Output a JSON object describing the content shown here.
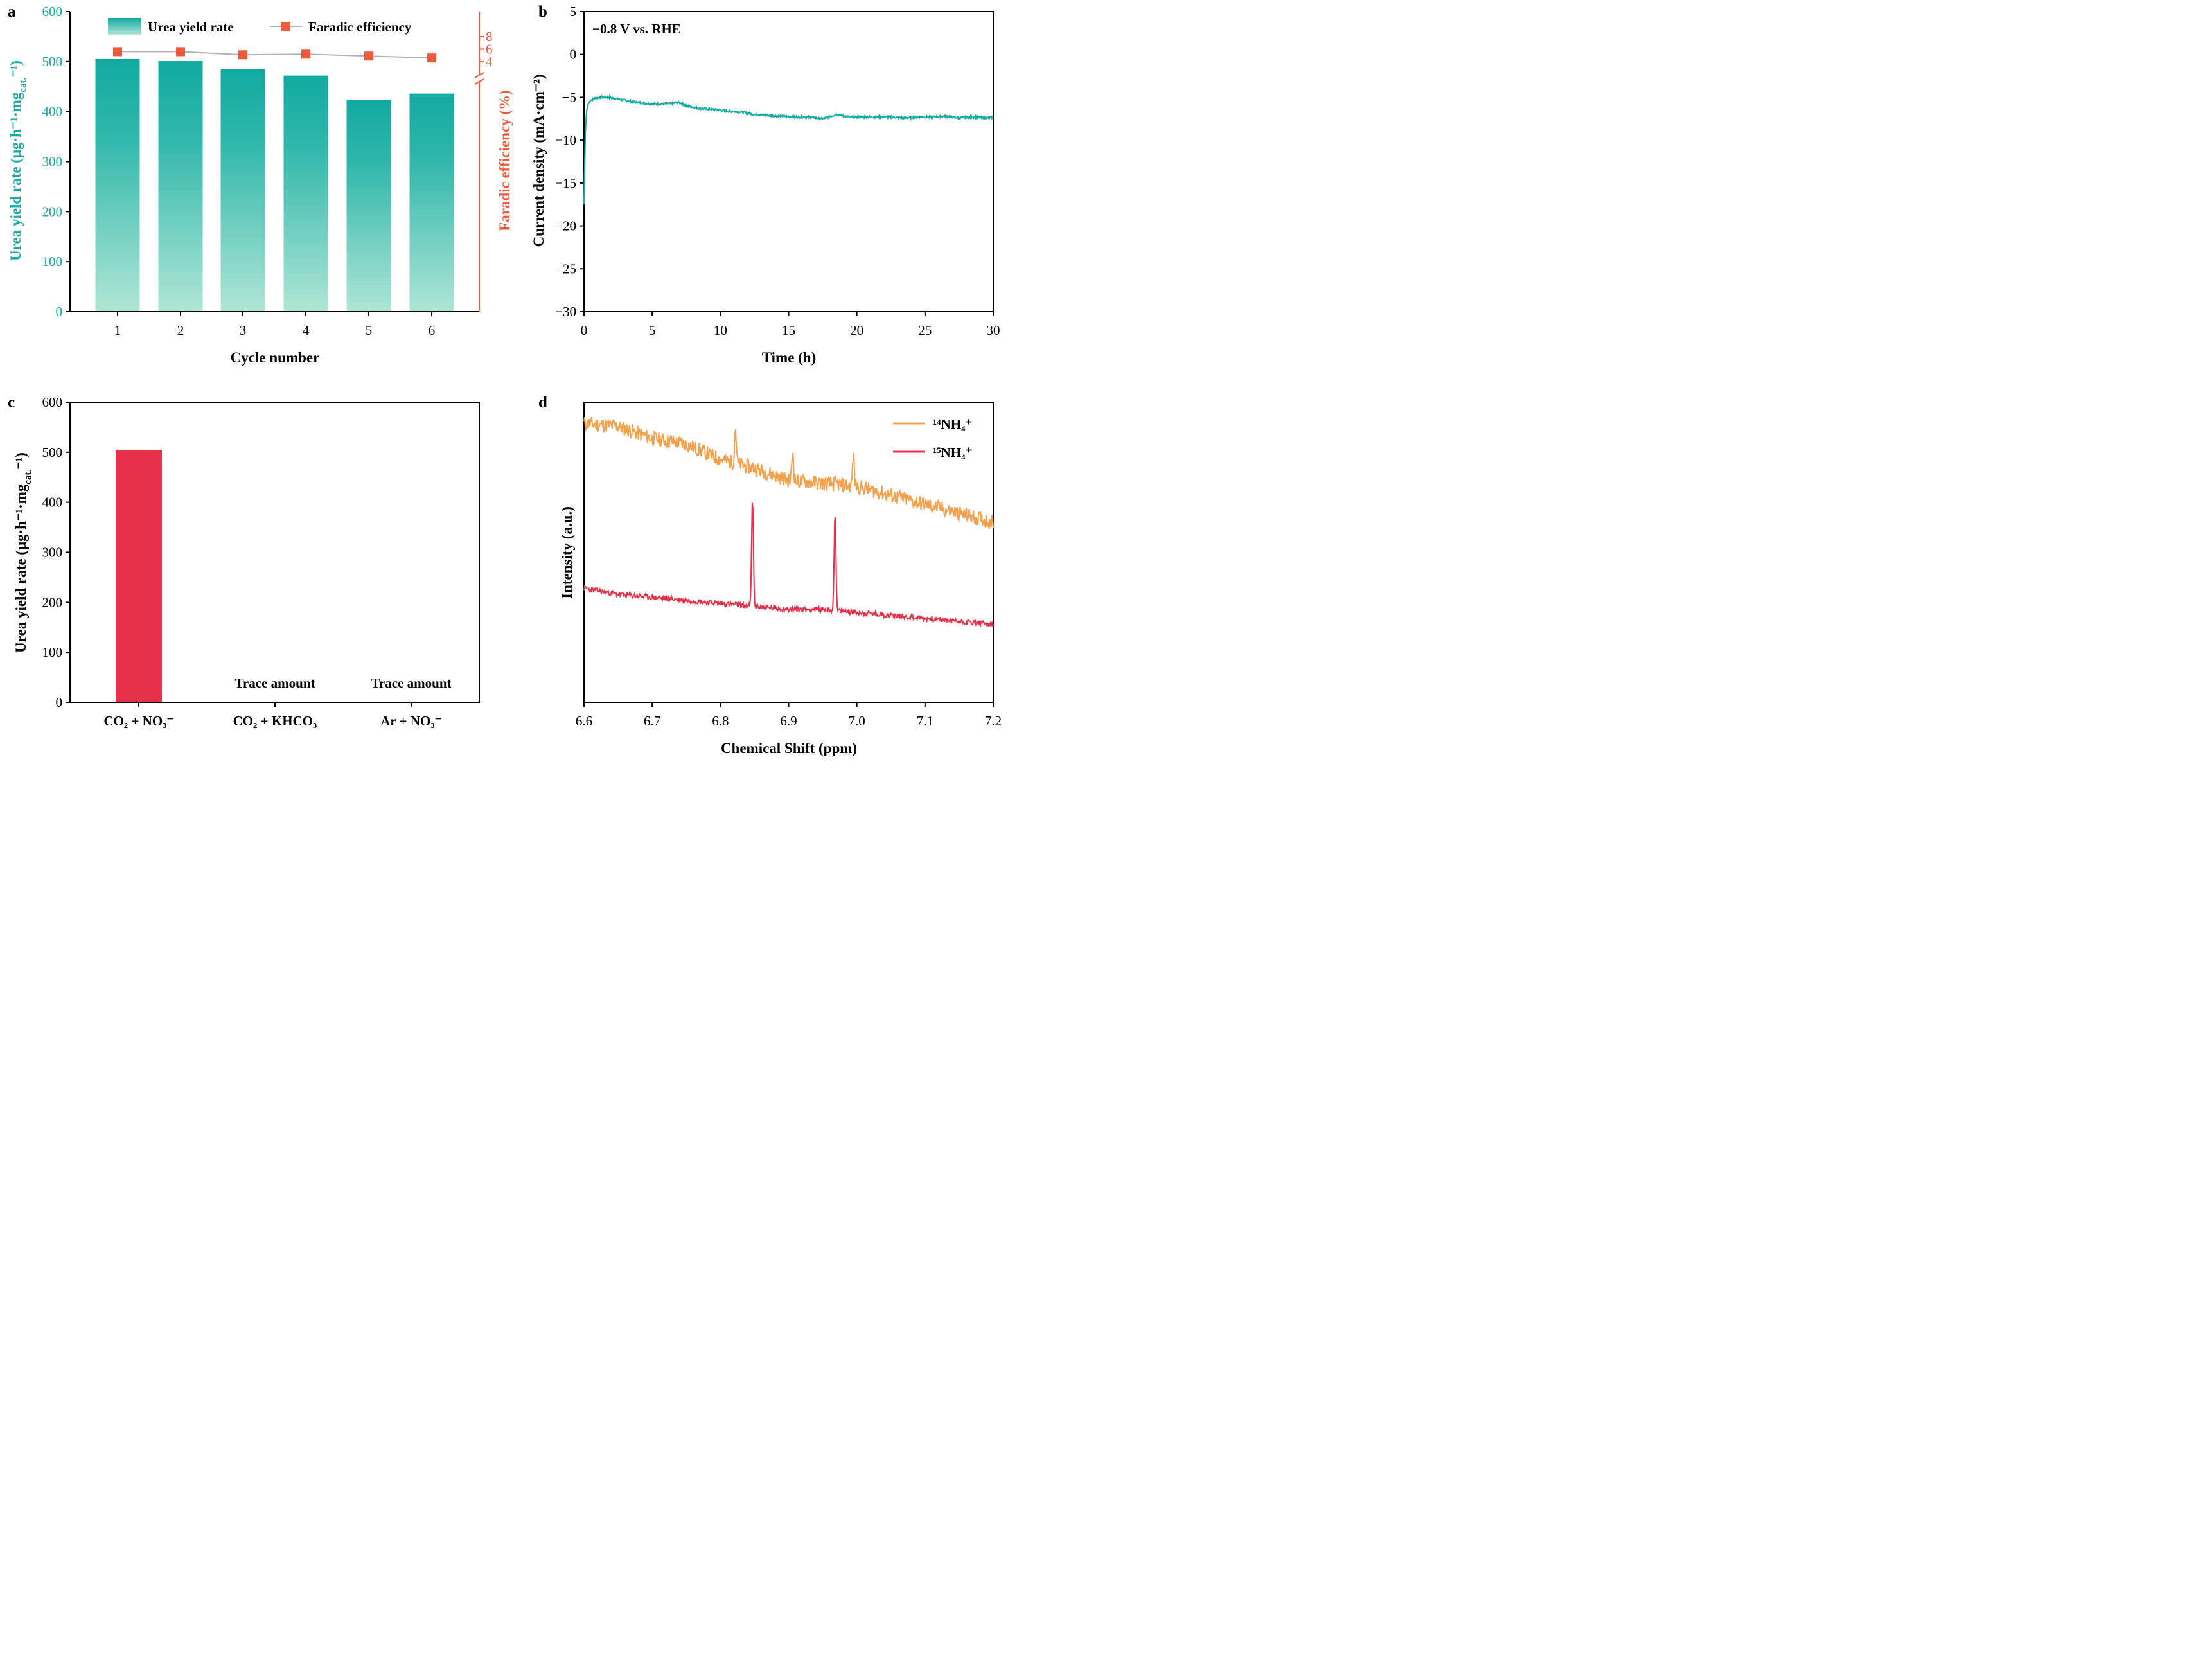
{
  "colors": {
    "teal": "#17ada2",
    "teal_light": "#a9e3d4",
    "orange_red": "#f05a3c",
    "red": "#e8304a",
    "orange": "#f5a04a",
    "gray_line": "#b0b0b0"
  },
  "chart_data": [
    {
      "panel": "a",
      "type": "bar",
      "xlabel": "Cycle number",
      "ylabel": "Urea yield rate (μg·h⁻¹·mg",
      "ylabel_sub": "cat.",
      "ylabel_end": "⁻¹)",
      "y2label": "Faradic efficiency (%)",
      "categories": [
        "1",
        "2",
        "3",
        "4",
        "5",
        "6"
      ],
      "ylim": [
        0,
        600
      ],
      "yticks": [
        "0",
        "100",
        "200",
        "300",
        "400",
        "500",
        "600"
      ],
      "y2ticks": [
        "4",
        "6",
        "8"
      ],
      "y2_break": "axis break below 4",
      "series": [
        {
          "name": "Urea yield rate",
          "type": "bar",
          "values": [
            505,
            501,
            485,
            472,
            424,
            436
          ]
        },
        {
          "name": "Faradic efficiency",
          "type": "line",
          "values": [
            5.6,
            5.6,
            5.1,
            5.2,
            4.9,
            4.6
          ]
        }
      ],
      "legend": [
        "Urea yield rate",
        "Faradic efficiency"
      ]
    },
    {
      "panel": "b",
      "type": "line",
      "xlabel": "Time (h)",
      "ylabel": "Current density (mA·cm⁻²)",
      "xlim": [
        0,
        30
      ],
      "ylim": [
        -30,
        5
      ],
      "xticks": [
        "0",
        "5",
        "10",
        "15",
        "20",
        "25",
        "30"
      ],
      "yticks": [
        "5",
        "0",
        "−5",
        "−10",
        "−15",
        "−20",
        "−25",
        "−30"
      ],
      "annotation": "−0.8 V vs. RHE",
      "series": [
        {
          "name": "current",
          "x": [
            0,
            0.05,
            0.1,
            0.2,
            0.3,
            0.5,
            0.8,
            1.2,
            1.8,
            2.5,
            3.5,
            4.5,
            5.5,
            6.5,
            7.0,
            7.5,
            8.5,
            9.5,
            10.5,
            11.5,
            12.5,
            13.5,
            14.5,
            15.5,
            16.5,
            17.5,
            18.5,
            19.5,
            20.5,
            21.5,
            22.5,
            23.5,
            24.5,
            25.5,
            26.5,
            27.5,
            28.5,
            29.5,
            30
          ],
          "y": [
            -17.5,
            -13,
            -9,
            -6.5,
            -5.8,
            -5.3,
            -5.1,
            -5.0,
            -5.0,
            -5.2,
            -5.5,
            -5.7,
            -5.8,
            -5.7,
            -5.6,
            -6.0,
            -6.3,
            -6.4,
            -6.6,
            -6.7,
            -7.0,
            -7.1,
            -7.2,
            -7.3,
            -7.3,
            -7.5,
            -7.0,
            -7.3,
            -7.3,
            -7.3,
            -7.3,
            -7.4,
            -7.3,
            -7.3,
            -7.2,
            -7.4,
            -7.3,
            -7.4,
            -7.3
          ]
        }
      ]
    },
    {
      "panel": "c",
      "type": "bar",
      "ylabel": "Urea yield rate (μg·h⁻¹·mg",
      "ylabel_sub": "cat.",
      "ylabel_end": "⁻¹)",
      "categories": [
        "CO₂ + NO₃⁻",
        "CO₂ + KHCO₃",
        "Ar + NO₃⁻"
      ],
      "values": [
        505,
        0,
        0
      ],
      "ylim": [
        0,
        600
      ],
      "yticks": [
        "0",
        "100",
        "200",
        "300",
        "400",
        "500",
        "600"
      ],
      "annotations": [
        "Trace amount",
        "Trace amount"
      ]
    },
    {
      "panel": "d",
      "type": "line",
      "xlabel": "Chemical Shift (ppm)",
      "ylabel": "Intensity (a.u.)",
      "xlim": [
        6.6,
        7.2
      ],
      "xticks": [
        "6.6",
        "6.7",
        "6.8",
        "6.9",
        "7.0",
        "7.1",
        "7.2"
      ],
      "legend": [
        "¹⁴NH₄⁺",
        "¹⁵NH₄⁺"
      ],
      "series": [
        {
          "name": "¹⁴NH₄⁺",
          "x": [
            6.6,
            6.65,
            6.7,
            6.75,
            6.8,
            6.85,
            6.9,
            6.95,
            7.0,
            7.05,
            7.1,
            7.15,
            7.2
          ],
          "y": [
            0.93,
            0.92,
            0.88,
            0.86,
            0.81,
            0.78,
            0.74,
            0.73,
            0.72,
            0.69,
            0.66,
            0.63,
            0.6
          ],
          "peaks": [
            [
              6.822,
              0.12
            ],
            [
              6.906,
              0.1
            ],
            [
              6.995,
              0.1
            ]
          ]
        },
        {
          "name": "¹⁵NH₄⁺",
          "x": [
            6.6,
            6.65,
            6.7,
            6.75,
            6.8,
            6.85,
            6.9,
            6.95,
            7.0,
            7.05,
            7.1,
            7.15,
            7.2
          ],
          "y": [
            0.38,
            0.36,
            0.35,
            0.34,
            0.33,
            0.32,
            0.31,
            0.31,
            0.3,
            0.29,
            0.28,
            0.27,
            0.26
          ],
          "peaks": [
            [
              6.847,
              0.36
            ],
            [
              6.968,
              0.33
            ]
          ]
        }
      ]
    }
  ],
  "panel_labels": [
    "a",
    "b",
    "c",
    "d"
  ]
}
